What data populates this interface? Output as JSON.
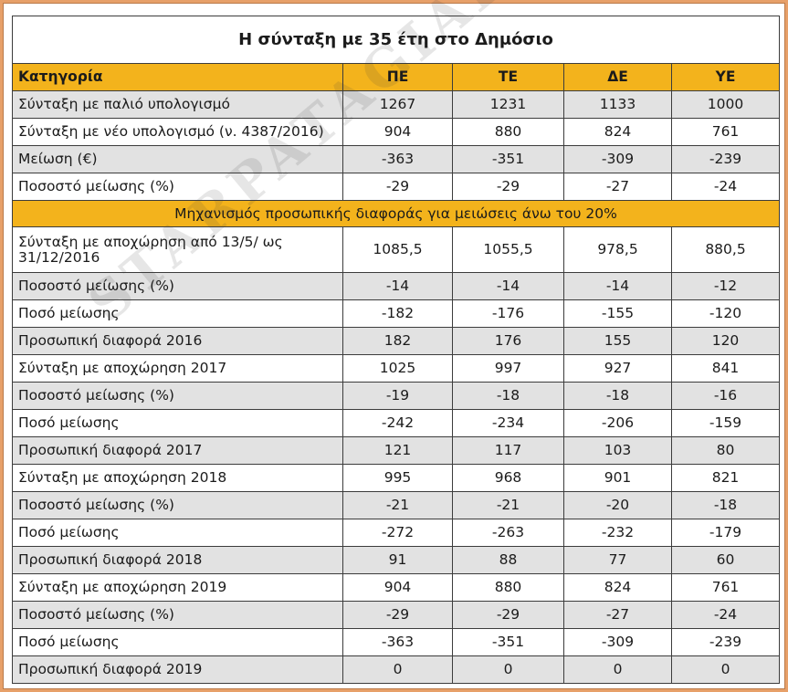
{
  "table": {
    "title": "Η σύνταξη με 35 έτη στο Δημόσιο",
    "headers": [
      "Κατηγορία",
      "ΠΕ",
      "ΤΕ",
      "ΔΕ",
      "ΥΕ"
    ],
    "rows_top": [
      [
        "Σύνταξη με παλιό υπολογισμό",
        "1267",
        "1231",
        "1133",
        "1000"
      ],
      [
        "Σύνταξη με νέο υπολογισμό (ν. 4387/2016)",
        "904",
        "880",
        "824",
        "761"
      ],
      [
        "Μείωση (€)",
        "-363",
        "-351",
        "-309",
        "-239"
      ],
      [
        "Ποσοστό μείωσης (%)",
        "-29",
        "-29",
        "-27",
        "-24"
      ]
    ],
    "section_title": "Μηχανισμός προσωπικής διαφοράς για μειώσεις άνω του 20%",
    "rows_bottom": [
      [
        "Σύνταξη με αποχώρηση από 13/5/ ως 31/12/2016",
        "1085,5",
        "1055,5",
        "978,5",
        "880,5"
      ],
      [
        "Ποσοστό μείωσης (%)",
        "-14",
        "-14",
        "-14",
        "-12"
      ],
      [
        "Ποσό μείωσης",
        "-182",
        "-176",
        "-155",
        "-120"
      ],
      [
        "Προσωπική διαφορά 2016",
        "182",
        "176",
        "155",
        "120"
      ],
      [
        "Σύνταξη με αποχώρηση 2017",
        "1025",
        "997",
        "927",
        "841"
      ],
      [
        "Ποσοστό μείωσης (%)",
        "-19",
        "-18",
        "-18",
        "-16"
      ],
      [
        "Ποσό μείωσης",
        "-242",
        "-234",
        "-206",
        "-159"
      ],
      [
        "Προσωπική διαφορά 2017",
        "121",
        "117",
        "103",
        "80"
      ],
      [
        "Σύνταξη με αποχώρηση 2018",
        "995",
        "968",
        "901",
        "821"
      ],
      [
        "Ποσοστό μείωσης (%)",
        "-21",
        "-21",
        "-20",
        "-18"
      ],
      [
        "Ποσό μείωσης",
        "-272",
        "-263",
        "-232",
        "-179"
      ],
      [
        "Προσωπική διαφορά 2018",
        "91",
        "88",
        "77",
        "60"
      ],
      [
        "Σύνταξη με αποχώρηση 2019",
        "904",
        "880",
        "824",
        "761"
      ],
      [
        "Ποσοστό μείωσης (%)",
        "-29",
        "-29",
        "-27",
        "-24"
      ],
      [
        "Ποσό μείωσης",
        "-363",
        "-351",
        "-309",
        "-239"
      ],
      [
        "Προσωπική διαφορά 2019",
        "0",
        "0",
        "0",
        "0"
      ]
    ]
  },
  "watermark": "STARPATAGIALOGIA.BLOGSPOT.GR",
  "colors": {
    "header_bg": "#f3b31c",
    "shaded_row": "#e2e2e2",
    "frame": "#e7a069"
  }
}
